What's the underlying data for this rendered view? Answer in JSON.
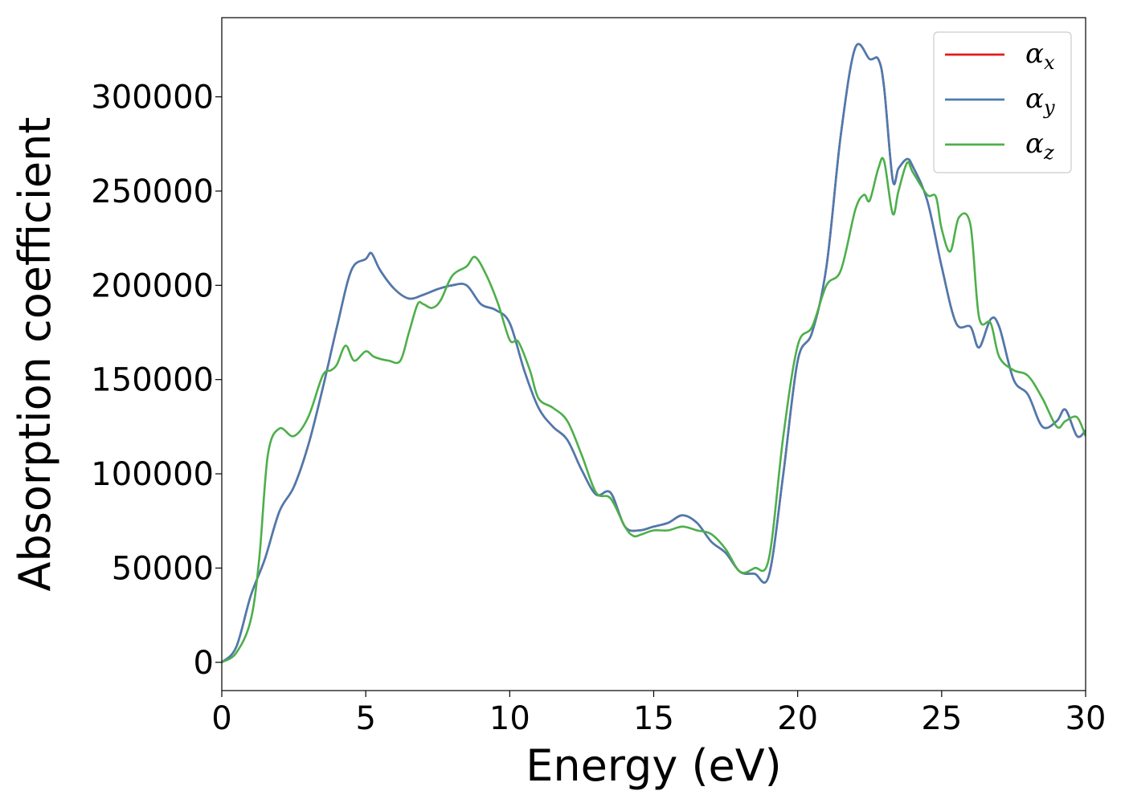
{
  "chart_data": {
    "type": "line",
    "title": "",
    "xlabel": "Energy (eV)",
    "ylabel": "Absorption coefficient",
    "xlim": [
      0,
      30
    ],
    "ylim": [
      -15000,
      342000
    ],
    "xticks": [
      0,
      5,
      10,
      15,
      20,
      25,
      30
    ],
    "xtick_labels": [
      "0",
      "5",
      "10",
      "15",
      "20",
      "25",
      "30"
    ],
    "yticks": [
      0,
      50000,
      100000,
      150000,
      200000,
      250000,
      300000
    ],
    "ytick_labels": [
      "0",
      "50000",
      "100000",
      "150000",
      "200000",
      "250000",
      "300000"
    ],
    "grid": false,
    "legend_position": "top-right",
    "series": [
      {
        "name": "αx",
        "symbol": "α",
        "subscript": "x",
        "color": "#e41a1c",
        "x": [
          0,
          0.5,
          1,
          1.5,
          2,
          2.5,
          3,
          3.5,
          4,
          4.5,
          5,
          5.2,
          5.5,
          6,
          6.5,
          7,
          7.5,
          8,
          8.5,
          9,
          9.5,
          10,
          10.5,
          11,
          11.5,
          12,
          12.5,
          13,
          13.5,
          14,
          14.5,
          15,
          15.5,
          16,
          16.5,
          17,
          17.5,
          18,
          18.5,
          19,
          19.5,
          20,
          20.5,
          21,
          21.5,
          22,
          22.5,
          22.8,
          23,
          23.3,
          23.5,
          23.8,
          24,
          24.5,
          25,
          25.5,
          26,
          26.3,
          26.7,
          27,
          27.5,
          28,
          28.5,
          29,
          29.3,
          29.7,
          30
        ],
        "y": [
          0,
          8000,
          35000,
          55000,
          80000,
          93000,
          115000,
          145000,
          178000,
          208000,
          214000,
          217000,
          208000,
          198000,
          193000,
          195000,
          198000,
          200000,
          200000,
          190000,
          187000,
          180000,
          155000,
          135000,
          125000,
          118000,
          102000,
          89000,
          90000,
          72000,
          70000,
          72000,
          74000,
          78000,
          74000,
          64000,
          58000,
          48000,
          47000,
          46000,
          100000,
          160000,
          175000,
          210000,
          280000,
          326000,
          320000,
          320000,
          305000,
          256000,
          262000,
          267000,
          263000,
          245000,
          210000,
          180000,
          178000,
          167000,
          182000,
          178000,
          150000,
          142000,
          125000,
          128000,
          134000,
          120000,
          123000
        ]
      },
      {
        "name": "αy",
        "symbol": "α",
        "subscript": "y",
        "color": "#4a7bb0",
        "x": [
          0,
          0.5,
          1,
          1.5,
          2,
          2.5,
          3,
          3.5,
          4,
          4.5,
          5,
          5.2,
          5.5,
          6,
          6.5,
          7,
          7.5,
          8,
          8.5,
          9,
          9.5,
          10,
          10.5,
          11,
          11.5,
          12,
          12.5,
          13,
          13.5,
          14,
          14.5,
          15,
          15.5,
          16,
          16.5,
          17,
          17.5,
          18,
          18.5,
          19,
          19.5,
          20,
          20.5,
          21,
          21.5,
          22,
          22.5,
          22.8,
          23,
          23.3,
          23.5,
          23.8,
          24,
          24.5,
          25,
          25.5,
          26,
          26.3,
          26.7,
          27,
          27.5,
          28,
          28.5,
          29,
          29.3,
          29.7,
          30
        ],
        "y": [
          0,
          8000,
          35000,
          55000,
          80000,
          93000,
          115000,
          145000,
          178000,
          208000,
          214000,
          217000,
          208000,
          198000,
          193000,
          195000,
          198000,
          200000,
          200000,
          190000,
          187000,
          180000,
          155000,
          135000,
          125000,
          118000,
          102000,
          89000,
          90000,
          72000,
          70000,
          72000,
          74000,
          78000,
          74000,
          64000,
          58000,
          48000,
          47000,
          46000,
          100000,
          160000,
          175000,
          210000,
          280000,
          326000,
          320000,
          320000,
          305000,
          256000,
          262000,
          267000,
          263000,
          245000,
          210000,
          180000,
          178000,
          167000,
          182000,
          178000,
          150000,
          142000,
          125000,
          128000,
          134000,
          120000,
          123000
        ]
      },
      {
        "name": "αz",
        "symbol": "α",
        "subscript": "z",
        "color": "#4daf4a",
        "x": [
          0,
          0.5,
          1,
          1.3,
          1.6,
          2,
          2.5,
          3,
          3.5,
          3.8,
          4,
          4.3,
          4.6,
          5,
          5.3,
          5.8,
          6.2,
          6.5,
          6.8,
          7,
          7.3,
          7.6,
          8,
          8.5,
          8.8,
          9.2,
          9.6,
          10,
          10.3,
          10.7,
          11,
          11.5,
          12,
          12.5,
          13,
          13.5,
          14,
          14.3,
          14.6,
          15,
          15.5,
          16,
          16.5,
          17,
          17.5,
          18,
          18.5,
          19,
          19.5,
          20,
          20.5,
          21,
          21.5,
          22,
          22.3,
          22.5,
          22.8,
          23,
          23.3,
          23.5,
          23.8,
          24,
          24.5,
          24.8,
          25,
          25.3,
          25.6,
          26,
          26.3,
          26.7,
          27,
          27.5,
          28,
          28.5,
          29,
          29.3,
          29.7,
          30
        ],
        "y": [
          0,
          5000,
          22000,
          55000,
          110000,
          124000,
          120000,
          130000,
          152000,
          155000,
          158000,
          168000,
          160000,
          165000,
          162000,
          160000,
          160000,
          175000,
          190000,
          190000,
          188000,
          192000,
          205000,
          210000,
          215000,
          205000,
          190000,
          171000,
          170000,
          155000,
          140000,
          135000,
          128000,
          110000,
          90000,
          87000,
          72000,
          67000,
          68000,
          70000,
          70000,
          72000,
          70000,
          68000,
          60000,
          48000,
          50000,
          55000,
          120000,
          168000,
          178000,
          200000,
          208000,
          240000,
          248000,
          245000,
          262000,
          266000,
          238000,
          250000,
          265000,
          260000,
          248000,
          247000,
          230000,
          218000,
          236000,
          232000,
          183000,
          180000,
          162000,
          155000,
          152000,
          140000,
          125000,
          128000,
          130000,
          120000
        ]
      }
    ]
  }
}
